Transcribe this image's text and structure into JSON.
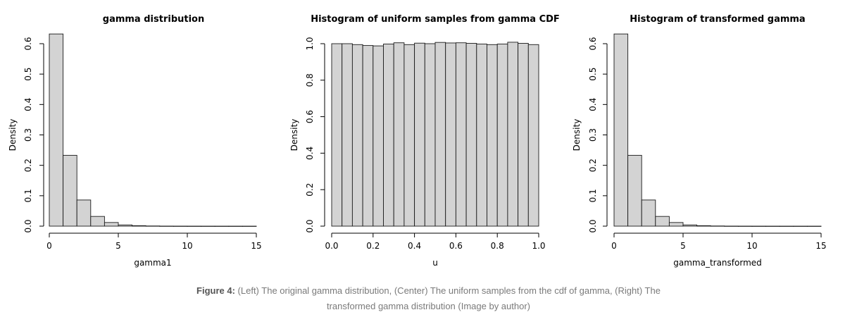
{
  "chart_data": [
    {
      "type": "bar",
      "title": "gamma distribution",
      "xlabel": "gamma1",
      "ylabel": "Density",
      "xlim": [
        0,
        15
      ],
      "ylim": [
        0,
        0.6
      ],
      "x_ticks": [
        "0",
        "5",
        "10",
        "15"
      ],
      "y_ticks": [
        "0.0",
        "0.1",
        "0.2",
        "0.3",
        "0.4",
        "0.5",
        "0.6"
      ],
      "bin_width": 1,
      "bin_starts": [
        0,
        1,
        2,
        3,
        4,
        5,
        6,
        7,
        8,
        9,
        10,
        11,
        12,
        13,
        14
      ],
      "values": [
        0.632,
        0.233,
        0.086,
        0.032,
        0.012,
        0.004,
        0.0015,
        0.0006,
        0.0002,
        0.0001,
        5e-05,
        2e-05,
        1e-05,
        5e-06,
        2e-06
      ],
      "grid": false,
      "bar_color": "#d3d3d3"
    },
    {
      "type": "bar",
      "title": "Histogram of uniform samples from gamma CDF",
      "xlabel": "u",
      "ylabel": "Density",
      "xlim": [
        0,
        1
      ],
      "ylim": [
        0,
        1
      ],
      "x_ticks": [
        "0.0",
        "0.2",
        "0.4",
        "0.6",
        "0.8",
        "1.0"
      ],
      "y_ticks": [
        "0.0",
        "0.2",
        "0.4",
        "0.6",
        "0.8",
        "1.0"
      ],
      "bin_width": 0.05,
      "bin_starts": [
        0,
        0.05,
        0.1,
        0.15,
        0.2,
        0.25,
        0.3,
        0.35,
        0.4,
        0.45,
        0.5,
        0.55,
        0.6,
        0.65,
        0.7,
        0.75,
        0.8,
        0.85,
        0.9,
        0.95
      ],
      "values": [
        1.0,
        1.0,
        0.995,
        0.99,
        0.988,
        0.998,
        1.005,
        0.995,
        1.003,
        1.0,
        1.007,
        1.004,
        1.005,
        1.002,
        0.998,
        0.995,
        0.998,
        1.008,
        1.002,
        0.995
      ],
      "grid": false,
      "bar_color": "#d3d3d3"
    },
    {
      "type": "bar",
      "title": "Histogram of transformed gamma",
      "xlabel": "gamma_transformed",
      "ylabel": "Density",
      "xlim": [
        0,
        15
      ],
      "ylim": [
        0,
        0.6
      ],
      "x_ticks": [
        "0",
        "5",
        "10",
        "15"
      ],
      "y_ticks": [
        "0.0",
        "0.1",
        "0.2",
        "0.3",
        "0.4",
        "0.5",
        "0.6"
      ],
      "bin_width": 1,
      "bin_starts": [
        0,
        1,
        2,
        3,
        4,
        5,
        6,
        7,
        8,
        9,
        10,
        11,
        12,
        13,
        14
      ],
      "values": [
        0.632,
        0.233,
        0.086,
        0.032,
        0.012,
        0.004,
        0.0015,
        0.0006,
        0.0002,
        0.0001,
        5e-05,
        2e-05,
        1e-05,
        5e-06,
        2e-06
      ],
      "grid": false,
      "bar_color": "#d3d3d3"
    }
  ],
  "caption": {
    "prefix": "Figure 4:",
    "text": " (Left) The original gamma distribution, (Center) The uniform samples from the cdf of gamma, (Right) The transformed gamma distribution (Image by author)"
  }
}
